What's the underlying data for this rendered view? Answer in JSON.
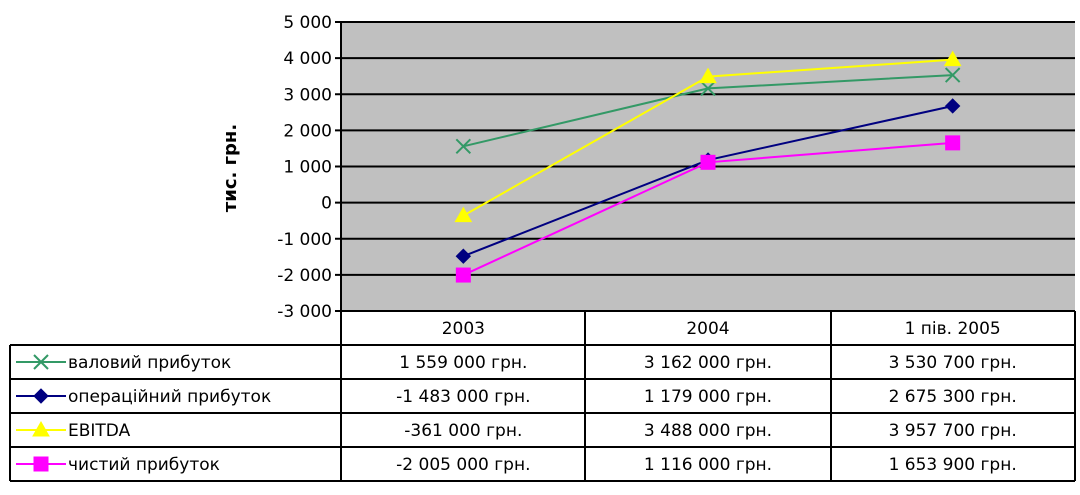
{
  "chart_data": {
    "type": "line",
    "title": "",
    "xlabel": "",
    "ylabel": "тис. грн.",
    "ylim": [
      -3000,
      5000
    ],
    "y_ticks": [
      5000,
      4000,
      3000,
      2000,
      1000,
      0,
      -1000,
      -2000,
      -3000
    ],
    "y_tick_labels": [
      "5 000",
      "4 000",
      "3 000",
      "2 000",
      "1 000",
      "0",
      "-1 000",
      "-2 000",
      "-3 000"
    ],
    "grid": true,
    "plot_background": "#c0c0c0",
    "legend_placement": "data-table-left",
    "categories": [
      "2003",
      "2004",
      "1 пів. 2005"
    ],
    "series": [
      {
        "name": "валовий прибуток",
        "color": "#339966",
        "marker": "x",
        "values": [
          1559,
          3162,
          3530.7
        ],
        "labels": [
          "1 559 000 грн.",
          "3 162 000 грн.",
          "3 530 700 грн."
        ]
      },
      {
        "name": "операційний прибуток",
        "color": "#000080",
        "marker": "diamond",
        "values": [
          -1483,
          1179,
          2675.3
        ],
        "labels": [
          "-1 483 000 грн.",
          "1 179 000 грн.",
          "2 675 300 грн."
        ]
      },
      {
        "name": "EBITDA",
        "color": "#ffff00",
        "marker": "triangle",
        "values": [
          -361,
          3488,
          3957.7
        ],
        "labels": [
          "-361 000 грн.",
          "3 488 000 грн.",
          "3 957 700 грн."
        ]
      },
      {
        "name": "чистий прибуток",
        "color": "#ff00ff",
        "marker": "square",
        "values": [
          -2005,
          1116,
          1653.9
        ],
        "labels": [
          "-2 005 000 грн.",
          "1 116 000 грн.",
          "1 653 900 грн."
        ]
      }
    ]
  }
}
